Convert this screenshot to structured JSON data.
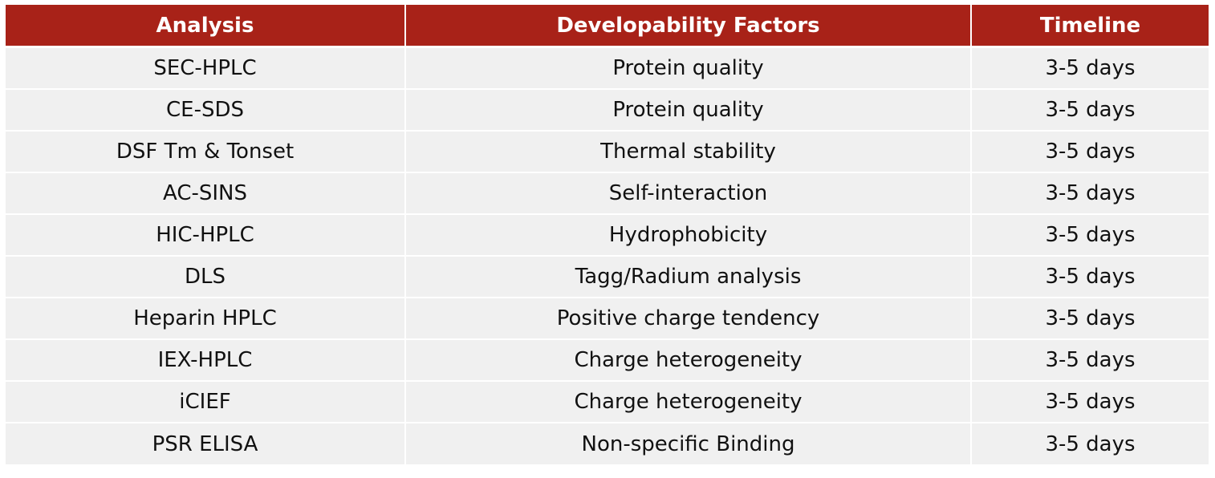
{
  "colors": {
    "header_background": "#a82218",
    "header_text": "#ffffff",
    "row_background": "#f0f0f0",
    "row_text": "#111111"
  },
  "table": {
    "headers": [
      "Analysis",
      "Developability Factors",
      "Timeline"
    ],
    "rows": [
      [
        "SEC-HPLC",
        "Protein quality",
        "3-5 days"
      ],
      [
        "CE-SDS",
        "Protein quality",
        "3-5 days"
      ],
      [
        "DSF Tm & Tonset",
        "Thermal stability",
        "3-5 days"
      ],
      [
        "AC-SINS",
        "Self-interaction",
        "3-5 days"
      ],
      [
        "HIC-HPLC",
        "Hydrophobicity",
        "3-5 days"
      ],
      [
        "DLS",
        "Tagg/Radium analysis",
        "3-5 days"
      ],
      [
        "Heparin HPLC",
        "Positive charge tendency",
        "3-5 days"
      ],
      [
        "IEX-HPLC",
        "Charge heterogeneity",
        "3-5 days"
      ],
      [
        "iCIEF",
        "Charge heterogeneity",
        "3-5 days"
      ],
      [
        "PSR ELISA",
        "Non-specific Binding",
        "3-5 days"
      ]
    ]
  }
}
